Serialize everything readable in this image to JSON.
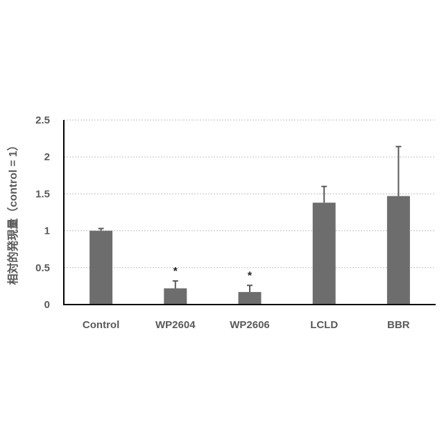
{
  "chart_data": {
    "type": "bar",
    "title": "",
    "xlabel": "",
    "ylabel": "相対的発現量（control = 1）",
    "ylim": [
      0,
      2.5
    ],
    "yticks": [
      0,
      0.5,
      1,
      1.5,
      2,
      2.5
    ],
    "ytick_labels": [
      "0",
      "0.5",
      "1",
      "1.5",
      "2",
      "2.5"
    ],
    "grid": true,
    "categories": [
      "Control",
      "WP2604",
      "WP2606",
      "LCLD",
      "BBR"
    ],
    "values": [
      1.0,
      0.22,
      0.17,
      1.38,
      1.47
    ],
    "error_upper": [
      0.03,
      0.1,
      0.09,
      0.22,
      0.67
    ],
    "annotations": [
      "",
      "*",
      "*",
      "",
      ""
    ],
    "bar_color": "#6d6d6d",
    "legend": "none"
  }
}
